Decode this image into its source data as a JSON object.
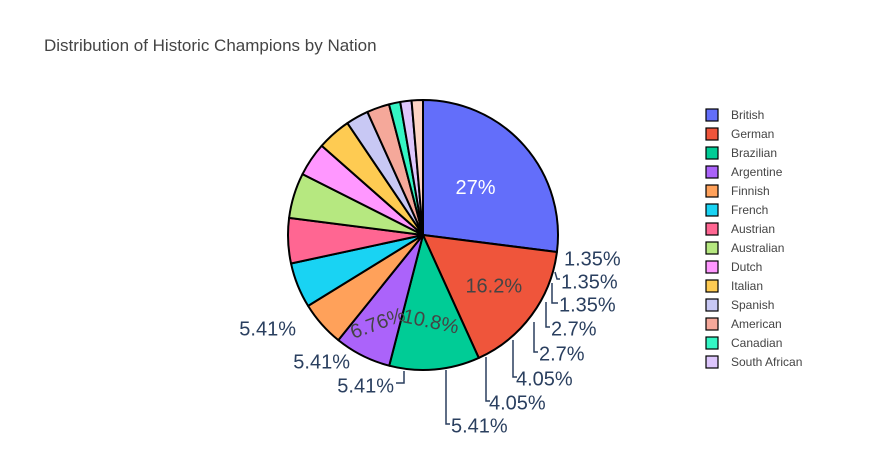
{
  "chart_data": {
    "type": "pie",
    "title": "Distribution of Historic Champions by Nation",
    "legend_position": "right",
    "slices": [
      {
        "label": "British",
        "value": 27,
        "text": "27%",
        "color": "#636efa"
      },
      {
        "label": "German",
        "value": 16.2,
        "text": "16.2%",
        "color": "#ef553b"
      },
      {
        "label": "Brazilian",
        "value": 10.8,
        "text": "10.8%",
        "color": "#00cc96"
      },
      {
        "label": "Argentine",
        "value": 6.76,
        "text": "6.76%",
        "color": "#ab63fa"
      },
      {
        "label": "Finnish",
        "value": 5.41,
        "text": "5.41%",
        "color": "#ffa15a"
      },
      {
        "label": "French",
        "value": 5.41,
        "text": "5.41%",
        "color": "#19d3f3"
      },
      {
        "label": "Austrian",
        "value": 5.41,
        "text": "5.41%",
        "color": "#ff6692"
      },
      {
        "label": "Australian",
        "value": 5.41,
        "text": "5.41%",
        "color": "#b6e880"
      },
      {
        "label": "Dutch",
        "value": 4.05,
        "text": "4.05%",
        "color": "#ff97ff"
      },
      {
        "label": "Italian",
        "value": 4.05,
        "text": "4.05%",
        "color": "#fecb52"
      },
      {
        "label": "Spanish",
        "value": 2.7,
        "text": "2.7%",
        "color": "#c8c8f4"
      },
      {
        "label": "American",
        "value": 2.7,
        "text": "2.7%",
        "color": "#f5a89a"
      },
      {
        "label": "Canadian",
        "value": 1.35,
        "text": "1.35%",
        "color": "#34f5c4"
      },
      {
        "label": "South African",
        "value": 1.35,
        "text": "1.35%",
        "color": "#ddc6fc"
      },
      {
        "label": "",
        "value": 1.35,
        "text": "1.35%",
        "color": "#fed4c4"
      }
    ]
  }
}
